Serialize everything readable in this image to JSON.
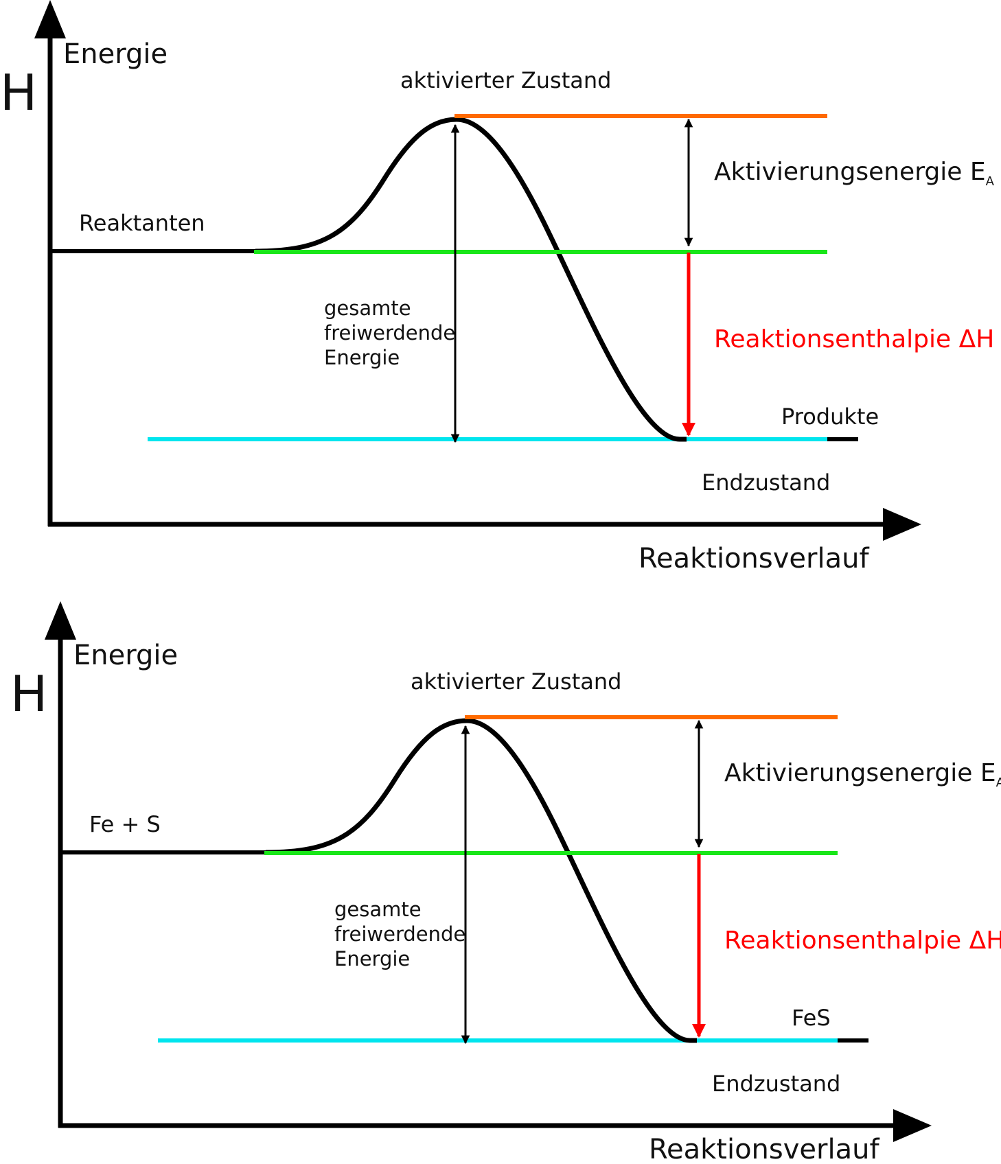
{
  "colors": {
    "curve": "#000000",
    "activated_level": "#ff6a00",
    "reactant_level": "#19e619",
    "product_level": "#00e5ee",
    "enthalpy_arrow": "#ff0000"
  },
  "diagrams": [
    {
      "y_axis_symbol": "H",
      "y_axis_label": "Energie",
      "x_axis_label": "Reaktionsverlauf",
      "activated_state_label": "aktivierter Zustand",
      "reactant_label": "Reaktanten",
      "activation_energy_label": "Aktivierungsenergie E",
      "activation_energy_subscript": "A",
      "total_energy_label": [
        "gesamte",
        "freiwerdende",
        "Energie"
      ],
      "enthalpy_label": "Reaktionsenthalpie  ΔH",
      "product_label": "Produkte",
      "final_state_label": "Endzustand"
    },
    {
      "y_axis_symbol": "H",
      "y_axis_label": "Energie",
      "x_axis_label": "Reaktionsverlauf",
      "activated_state_label": "aktivierter Zustand",
      "reactant_label": "Fe + S",
      "activation_energy_label": "Aktivierungsenergie E",
      "activation_energy_subscript": "A",
      "total_energy_label": [
        "gesamte",
        "freiwerdende",
        "Energie"
      ],
      "enthalpy_label": "Reaktionsenthalpie  ΔH",
      "product_label": "FeS",
      "final_state_label": "Endzustand"
    }
  ]
}
